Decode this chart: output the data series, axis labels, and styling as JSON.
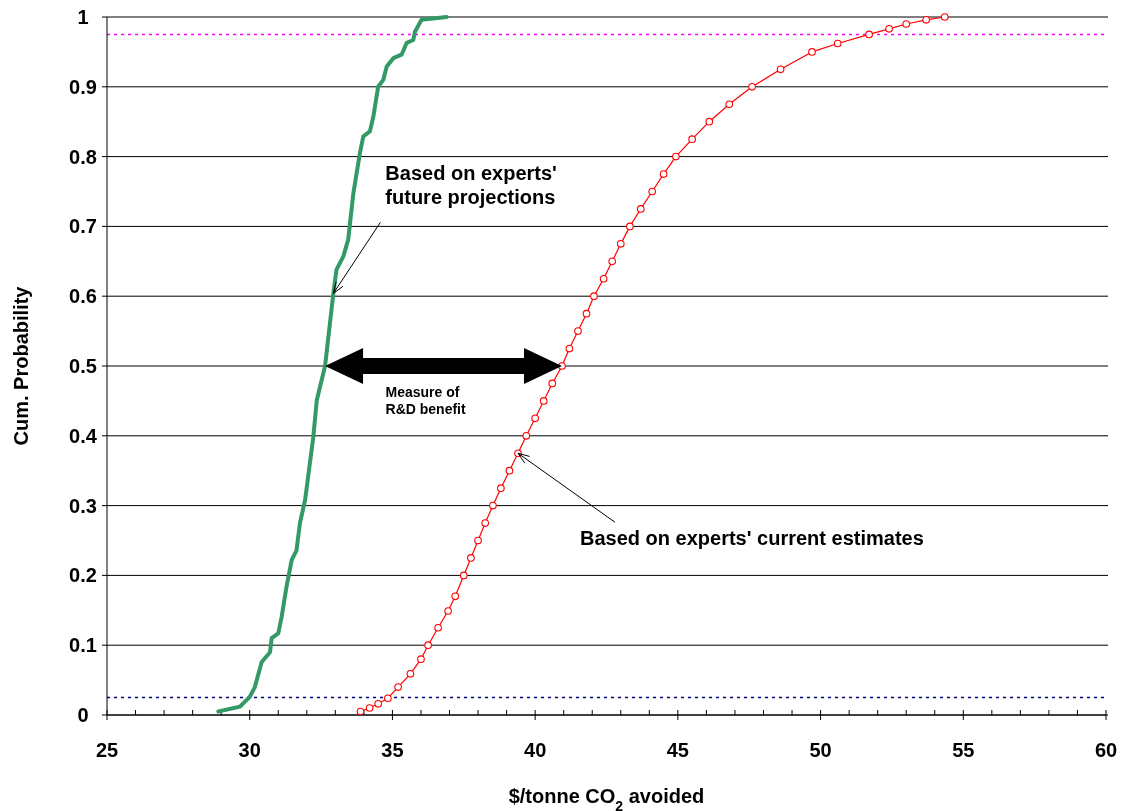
{
  "chart_data": {
    "type": "line",
    "xlabel": "$/tonne CO$_{2}$ avoided",
    "ylabel": "Cum. Probability",
    "xlim": [
      25,
      60
    ],
    "ylim": [
      0,
      1
    ],
    "xticks": [
      25,
      {
        "value": 26,
        "label": null
      },
      {
        "value": 27,
        "label": null
      },
      {
        "value": 28,
        "label": null
      },
      {
        "value": 29,
        "label": null
      },
      30,
      {
        "value": 31,
        "label": null
      },
      {
        "value": 32,
        "label": null
      },
      {
        "value": 33,
        "label": null
      },
      {
        "value": 34,
        "label": null
      },
      35,
      {
        "value": 36,
        "label": null
      },
      {
        "value": 37,
        "label": null
      },
      {
        "value": 38,
        "label": null
      },
      {
        "value": 39,
        "label": null
      },
      40,
      {
        "value": 41,
        "label": null
      },
      {
        "value": 42,
        "label": null
      },
      {
        "value": 43,
        "label": null
      },
      {
        "value": 44,
        "label": null
      },
      45,
      {
        "value": 46,
        "label": null
      },
      {
        "value": 47,
        "label": null
      },
      {
        "value": 48,
        "label": null
      },
      {
        "value": 49,
        "label": null
      },
      50,
      {
        "value": 51,
        "label": null
      },
      {
        "value": 52,
        "label": null
      },
      {
        "value": 53,
        "label": null
      },
      {
        "value": 54,
        "label": null
      },
      55,
      {
        "value": 56,
        "label": null
      },
      {
        "value": 57,
        "label": null
      },
      {
        "value": 58,
        "label": null
      },
      {
        "value": 59,
        "label": null
      },
      60
    ],
    "yticks": [
      0,
      0.1,
      0.2,
      0.3,
      0.4,
      0.5,
      0.6,
      0.7,
      0.8,
      0.9,
      1
    ],
    "grid": "y",
    "series": [
      {
        "color": "#339966",
        "marker": "none",
        "x": [
          28.9,
          29.66,
          30.0,
          30.18,
          30.42,
          30.71,
          30.77,
          31.0,
          31.12,
          31.29,
          31.47,
          31.64,
          31.76,
          31.94,
          32.23,
          32.35,
          32.64,
          32.93,
          33.04,
          33.28,
          33.45,
          33.63,
          33.86,
          33.98,
          34.21,
          34.33,
          34.5,
          34.68,
          34.8,
          35.03,
          35.32,
          35.5,
          35.73,
          35.79,
          36.02,
          36.9
        ],
        "values": [
          0.005,
          0.012,
          0.026,
          0.04,
          0.076,
          0.09,
          0.11,
          0.117,
          0.141,
          0.184,
          0.222,
          0.236,
          0.275,
          0.308,
          0.399,
          0.451,
          0.5,
          0.604,
          0.638,
          0.657,
          0.681,
          0.747,
          0.805,
          0.829,
          0.836,
          0.857,
          0.9,
          0.91,
          0.929,
          0.941,
          0.946,
          0.963,
          0.967,
          0.979,
          0.996,
          1.0
        ]
      },
      {
        "color": "#ff0000",
        "marker": "circle",
        "x": [
          33.88,
          34.2,
          34.5,
          34.84,
          35.2,
          35.63,
          36.0,
          36.25,
          36.6,
          36.95,
          37.2,
          37.5,
          37.75,
          38.0,
          38.25,
          38.52,
          38.8,
          39.1,
          39.4,
          39.69,
          40.0,
          40.3,
          40.6,
          40.94,
          41.2,
          41.5,
          41.8,
          42.06,
          42.4,
          42.7,
          43.0,
          43.32,
          43.7,
          44.1,
          44.5,
          44.93,
          45.5,
          46.1,
          46.8,
          47.6,
          48.6,
          49.7,
          50.6,
          51.7,
          52.4,
          53.0,
          53.7,
          54.35
        ],
        "values": [
          0.005,
          0.01,
          0.016,
          0.024,
          0.04,
          0.059,
          0.08,
          0.1,
          0.125,
          0.149,
          0.17,
          0.2,
          0.225,
          0.25,
          0.275,
          0.3,
          0.325,
          0.35,
          0.375,
          0.4,
          0.425,
          0.45,
          0.475,
          0.5,
          0.525,
          0.55,
          0.575,
          0.6,
          0.625,
          0.65,
          0.675,
          0.7,
          0.725,
          0.75,
          0.775,
          0.8,
          0.825,
          0.85,
          0.875,
          0.9,
          0.925,
          0.95,
          0.962,
          0.975,
          0.983,
          0.99,
          0.996,
          1.0
        ]
      }
    ],
    "ref_lines": [
      {
        "axis": "y",
        "value": 0.975,
        "color": "#ff00ff",
        "line_style": "dotted"
      },
      {
        "axis": "y",
        "value": 0.025,
        "color": "#000080",
        "line_style": "dotted"
      }
    ],
    "annotations": [
      {
        "text": "Based on experts'\nfuture projections",
        "x": 32.93,
        "y": 0.604
      },
      "Measure of\nR&D benefit",
      {
        "text": "Based on experts' current estimates",
        "x": 39.4,
        "y": 0.375
      }
    ]
  }
}
